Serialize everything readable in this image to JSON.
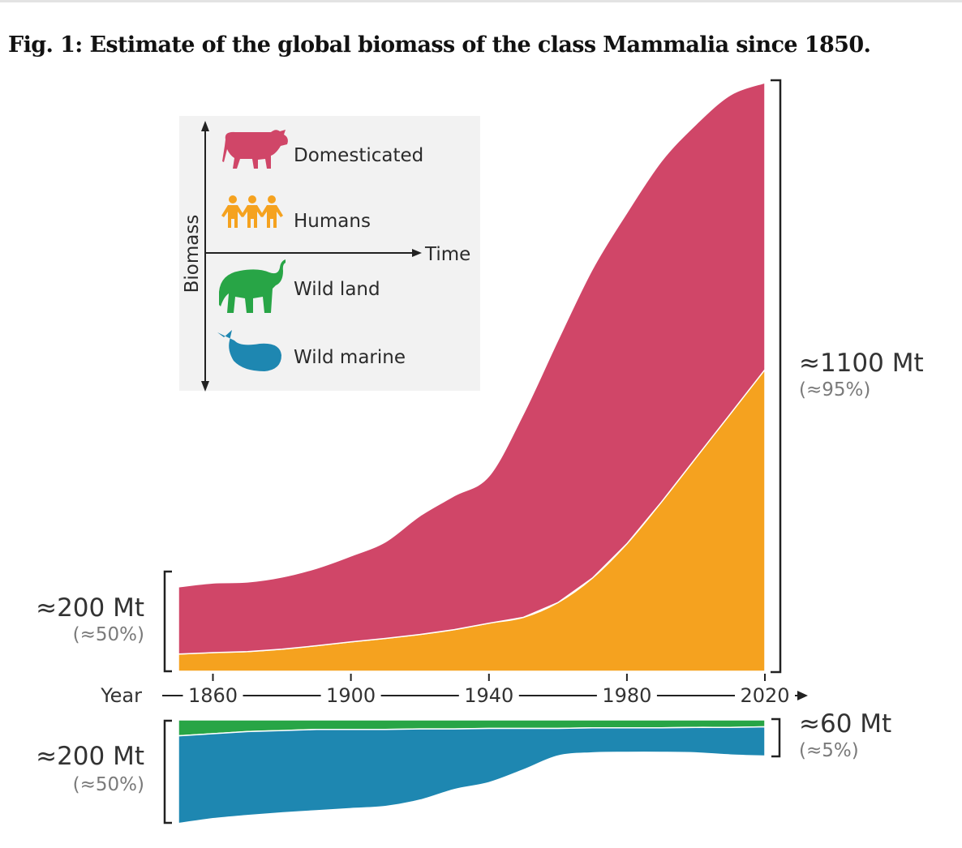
{
  "figure": {
    "title": "Fig. 1: Estimate of the global biomass of the class Mammalia since 1850."
  },
  "chart_data": {
    "type": "area",
    "x": [
      1850,
      1860,
      1870,
      1880,
      1890,
      1900,
      1910,
      1920,
      1930,
      1940,
      1950,
      1960,
      1970,
      1980,
      1990,
      2000,
      2010,
      2020
    ],
    "xticks": [
      1860,
      1900,
      1940,
      1980,
      2020
    ],
    "xaxis_label": "Year",
    "legend": {
      "axis_y_label": "Biomass",
      "axis_x_label": "Time",
      "placement": "top-left",
      "entries": [
        {
          "key": "domesticated",
          "label": "Domesticated",
          "color": "#d04668",
          "icon": "cow-icon"
        },
        {
          "key": "humans",
          "label": "Humans",
          "color": "#f5a21f",
          "icon": "people-icon"
        },
        {
          "key": "wild_land",
          "label": "Wild land",
          "color": "#28a546",
          "icon": "elephant-icon"
        },
        {
          "key": "wild_marine",
          "label": "Wild marine",
          "color": "#1e87b1",
          "icon": "whale-icon"
        }
      ]
    },
    "panels": [
      {
        "id": "human-livestock",
        "stacking": "upward",
        "series": [
          {
            "key": "humans",
            "name": "Humans",
            "color": "#f5a21f",
            "values": [
              35,
              38,
              40,
              45,
              52,
              60,
              67,
              75,
              85,
              98,
              110,
              140,
              190,
              260,
              345,
              435,
              525,
              615
            ]
          },
          {
            "key": "domesticated",
            "name": "Domesticated",
            "color": "#d04668",
            "values": [
              137,
              142,
              142,
              147,
              158,
              175,
              197,
              242,
              273,
              300,
              415,
              535,
              630,
              675,
              695,
              680,
              650,
              585
            ]
          }
        ],
        "start_annotation": {
          "value": "≈200 Mt",
          "share": "(≈50%)"
        },
        "end_annotation": {
          "value": "≈1100 Mt",
          "share": "(≈95%)"
        }
      },
      {
        "id": "wild",
        "stacking": "downward",
        "series": [
          {
            "key": "wild_land",
            "name": "Wild land",
            "color": "#28a546",
            "values": [
              30,
              26,
              22,
              20,
              18,
              18,
              18,
              17,
              17,
              16,
              16,
              16,
              15,
              15,
              15,
              14,
              14,
              13
            ]
          },
          {
            "key": "wild_marine",
            "name": "Wild marine",
            "color": "#1e87b1",
            "values": [
              165,
              160,
              158,
              155,
              153,
              149,
              145,
              134,
              114,
              102,
              78,
              52,
              47,
              46,
              46,
              48,
              52,
              55
            ]
          }
        ],
        "start_annotation": {
          "value": "≈200 Mt",
          "share": "(≈50%)"
        },
        "end_annotation": {
          "value": "≈60 Mt",
          "share": "(≈5%)"
        }
      }
    ]
  }
}
